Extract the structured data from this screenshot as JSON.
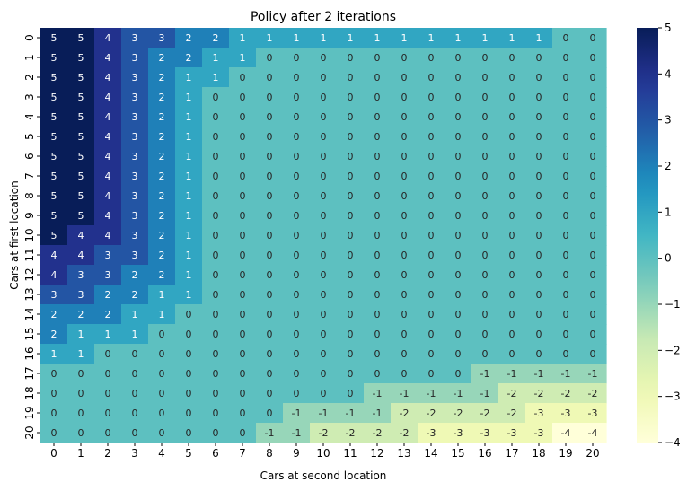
{
  "chart_data": {
    "type": "heatmap",
    "title": "Policy after 2 iterations",
    "xlabel": "Cars at second location",
    "ylabel": "Cars at first location",
    "x_categories": [
      "0",
      "1",
      "2",
      "3",
      "4",
      "5",
      "6",
      "7",
      "8",
      "9",
      "10",
      "11",
      "12",
      "13",
      "14",
      "15",
      "16",
      "17",
      "18",
      "19",
      "20"
    ],
    "y_categories": [
      "0",
      "1",
      "2",
      "3",
      "4",
      "5",
      "6",
      "7",
      "8",
      "9",
      "10",
      "11",
      "12",
      "13",
      "14",
      "15",
      "16",
      "17",
      "18",
      "19",
      "20"
    ],
    "values": [
      [
        5,
        5,
        4,
        3,
        3,
        2,
        2,
        1,
        1,
        1,
        1,
        1,
        1,
        1,
        1,
        1,
        1,
        1,
        1,
        0,
        0
      ],
      [
        5,
        5,
        4,
        3,
        2,
        2,
        1,
        1,
        0,
        0,
        0,
        0,
        0,
        0,
        0,
        0,
        0,
        0,
        0,
        0,
        0
      ],
      [
        5,
        5,
        4,
        3,
        2,
        1,
        1,
        0,
        0,
        0,
        0,
        0,
        0,
        0,
        0,
        0,
        0,
        0,
        0,
        0,
        0
      ],
      [
        5,
        5,
        4,
        3,
        2,
        1,
        0,
        0,
        0,
        0,
        0,
        0,
        0,
        0,
        0,
        0,
        0,
        0,
        0,
        0,
        0
      ],
      [
        5,
        5,
        4,
        3,
        2,
        1,
        0,
        0,
        0,
        0,
        0,
        0,
        0,
        0,
        0,
        0,
        0,
        0,
        0,
        0,
        0
      ],
      [
        5,
        5,
        4,
        3,
        2,
        1,
        0,
        0,
        0,
        0,
        0,
        0,
        0,
        0,
        0,
        0,
        0,
        0,
        0,
        0,
        0
      ],
      [
        5,
        5,
        4,
        3,
        2,
        1,
        0,
        0,
        0,
        0,
        0,
        0,
        0,
        0,
        0,
        0,
        0,
        0,
        0,
        0,
        0
      ],
      [
        5,
        5,
        4,
        3,
        2,
        1,
        0,
        0,
        0,
        0,
        0,
        0,
        0,
        0,
        0,
        0,
        0,
        0,
        0,
        0,
        0
      ],
      [
        5,
        5,
        4,
        3,
        2,
        1,
        0,
        0,
        0,
        0,
        0,
        0,
        0,
        0,
        0,
        0,
        0,
        0,
        0,
        0,
        0
      ],
      [
        5,
        5,
        4,
        3,
        2,
        1,
        0,
        0,
        0,
        0,
        0,
        0,
        0,
        0,
        0,
        0,
        0,
        0,
        0,
        0,
        0
      ],
      [
        5,
        4,
        4,
        3,
        2,
        1,
        0,
        0,
        0,
        0,
        0,
        0,
        0,
        0,
        0,
        0,
        0,
        0,
        0,
        0,
        0
      ],
      [
        4,
        4,
        3,
        3,
        2,
        1,
        0,
        0,
        0,
        0,
        0,
        0,
        0,
        0,
        0,
        0,
        0,
        0,
        0,
        0,
        0
      ],
      [
        4,
        3,
        3,
        2,
        2,
        1,
        0,
        0,
        0,
        0,
        0,
        0,
        0,
        0,
        0,
        0,
        0,
        0,
        0,
        0,
        0
      ],
      [
        3,
        3,
        2,
        2,
        1,
        1,
        0,
        0,
        0,
        0,
        0,
        0,
        0,
        0,
        0,
        0,
        0,
        0,
        0,
        0,
        0
      ],
      [
        2,
        2,
        2,
        1,
        1,
        0,
        0,
        0,
        0,
        0,
        0,
        0,
        0,
        0,
        0,
        0,
        0,
        0,
        0,
        0,
        0
      ],
      [
        2,
        1,
        1,
        1,
        0,
        0,
        0,
        0,
        0,
        0,
        0,
        0,
        0,
        0,
        0,
        0,
        0,
        0,
        0,
        0,
        0
      ],
      [
        1,
        1,
        0,
        0,
        0,
        0,
        0,
        0,
        0,
        0,
        0,
        0,
        0,
        0,
        0,
        0,
        0,
        0,
        0,
        0,
        0
      ],
      [
        0,
        0,
        0,
        0,
        0,
        0,
        0,
        0,
        0,
        0,
        0,
        0,
        0,
        0,
        0,
        0,
        -1,
        -1,
        -1,
        -1,
        -1
      ],
      [
        0,
        0,
        0,
        0,
        0,
        0,
        0,
        0,
        0,
        0,
        0,
        0,
        -1,
        -1,
        -1,
        -1,
        -1,
        -2,
        -2,
        -2,
        -2
      ],
      [
        0,
        0,
        0,
        0,
        0,
        0,
        0,
        0,
        0,
        -1,
        -1,
        -1,
        -1,
        -2,
        -2,
        -2,
        -2,
        -2,
        -3,
        -3,
        -3
      ],
      [
        0,
        0,
        0,
        0,
        0,
        0,
        0,
        0,
        -1,
        -1,
        -2,
        -2,
        -2,
        -2,
        -3,
        -3,
        -3,
        -3,
        -3,
        -4,
        -4
      ]
    ],
    "vmin": -4,
    "vmax": 5,
    "colormap": "YlGnBu",
    "colorbar_ticks": [
      "5",
      "4",
      "3",
      "2",
      "1",
      "0",
      "−1",
      "−2",
      "−3",
      "−4"
    ],
    "colorbar_tick_values": [
      5,
      4,
      3,
      2,
      1,
      0,
      -1,
      -2,
      -3,
      -4
    ],
    "annotations": true,
    "grid": false,
    "legend": "colorbar-right"
  }
}
